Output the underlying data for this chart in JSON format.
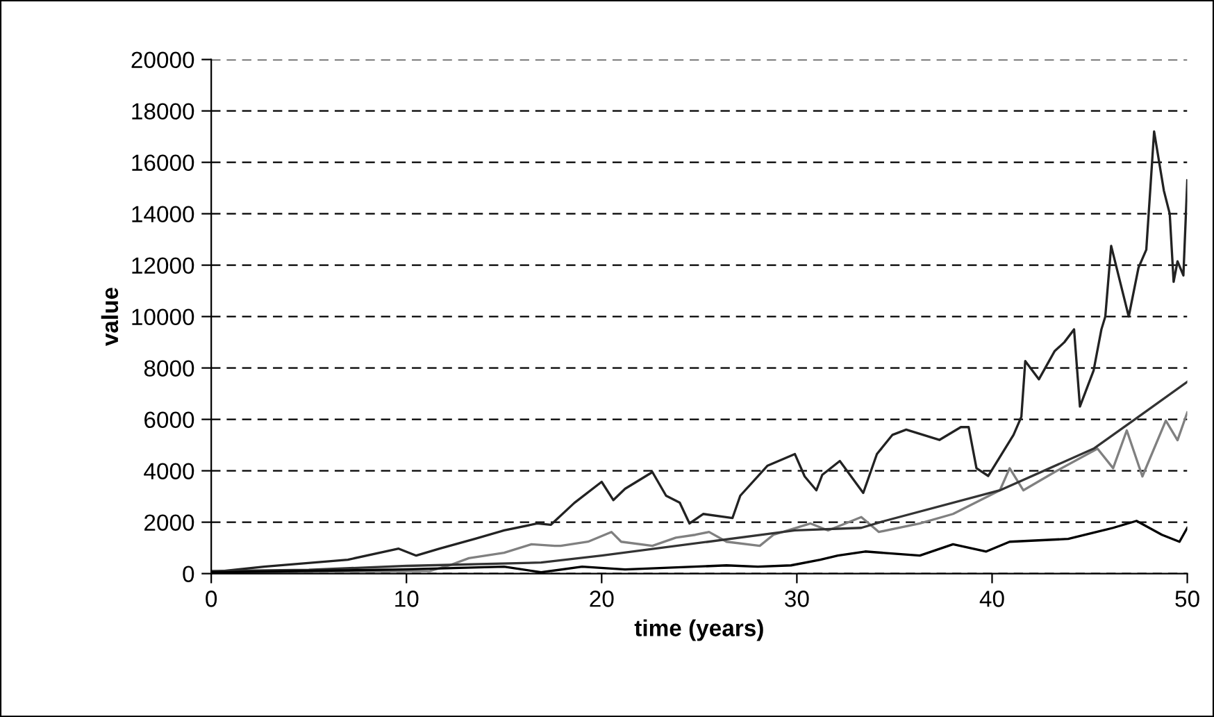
{
  "chart_data": {
    "type": "line",
    "xlabel": "time (years)",
    "ylabel": "value",
    "xlim": [
      0,
      50
    ],
    "xticks": [
      0,
      10,
      20,
      30,
      40,
      50
    ],
    "ylim": [
      0,
      20000
    ],
    "yticks": [
      0,
      2000,
      4000,
      6000,
      8000,
      10000,
      12000,
      14000,
      16000,
      18000,
      20000
    ],
    "grid": "y",
    "line_style": "solid",
    "marker": "none",
    "series": [
      {
        "color": "#222222",
        "x": [
          0,
          2.7,
          7,
          9.6,
          10.5,
          11.7,
          13.5,
          15,
          16.7,
          17.4,
          18.6,
          20,
          20.6,
          21.2,
          22.6,
          23.3,
          24,
          24.5,
          25.2,
          26.7,
          27.1,
          28.5,
          29.9,
          30.4,
          31,
          31.3,
          32.2,
          33.4,
          34.1,
          34.9,
          35.6,
          37.3,
          38.4,
          38.8,
          39.2,
          39.8,
          41.1,
          41.5,
          41.7,
          42.4,
          43.2,
          43.7,
          44.2,
          44.5,
          45.2,
          45.6,
          45.8,
          46.1,
          47,
          47.5,
          47.9,
          48.3,
          48.8,
          49.1,
          49.3,
          49.5,
          49.8,
          50
        ],
        "values": [
          50,
          270,
          540,
          970,
          700,
          970,
          1350,
          1680,
          1950,
          1900,
          2750,
          3570,
          2860,
          3300,
          3950,
          3030,
          2760,
          1950,
          2320,
          2160,
          3030,
          4200,
          4650,
          3780,
          3240,
          3840,
          4380,
          3140,
          4650,
          5400,
          5600,
          5200,
          5700,
          5700,
          4100,
          3800,
          5400,
          6100,
          8270,
          7560,
          8650,
          9000,
          9500,
          6500,
          7900,
          9500,
          10000,
          12750,
          10000,
          11900,
          12600,
          17200,
          14900,
          14000,
          11350,
          12150,
          11600,
          15300
        ]
      },
      {
        "color": "#808080",
        "x": [
          0,
          11.2,
          12.2,
          13.2,
          15,
          16.4,
          17.6,
          17.9,
          19.3,
          20.5,
          21,
          22.6,
          23.8,
          24.8,
          25.5,
          26.4,
          28.1,
          28.8,
          30.7,
          31.6,
          33.3,
          34.2,
          36.3,
          38,
          40.4,
          40.9,
          41.6,
          43.2,
          45.4,
          46.2,
          46.9,
          47.7,
          48.9,
          49.5,
          50
        ],
        "values": [
          50,
          100,
          320,
          600,
          810,
          1140,
          1080,
          1080,
          1240,
          1620,
          1240,
          1080,
          1400,
          1510,
          1620,
          1240,
          1080,
          1510,
          1950,
          1680,
          2200,
          1620,
          1950,
          2320,
          3240,
          4100,
          3240,
          3950,
          4860,
          4100,
          5570,
          3780,
          5950,
          5190,
          6270
        ]
      },
      {
        "color": "#333333",
        "x": [
          0,
          5,
          10,
          16.9,
          20,
          29.9,
          33.3,
          34.5,
          40.4,
          45.2,
          47.5,
          50
        ],
        "values": [
          100,
          150,
          300,
          430,
          700,
          1680,
          1780,
          2050,
          3240,
          4860,
          6100,
          7460
        ]
      },
      {
        "color": "#000000",
        "x": [
          0,
          9.8,
          15,
          16.9,
          19,
          21.2,
          26.4,
          28,
          29.7,
          31.2,
          32.1,
          33.5,
          36.3,
          38,
          39.7,
          40.9,
          43.9,
          46.2,
          47.4,
          48.7,
          49.6,
          50
        ],
        "values": [
          50,
          160,
          270,
          50,
          270,
          160,
          320,
          270,
          320,
          540,
          700,
          860,
          700,
          1140,
          860,
          1240,
          1350,
          1780,
          2050,
          1510,
          1240,
          1780
        ]
      }
    ]
  }
}
